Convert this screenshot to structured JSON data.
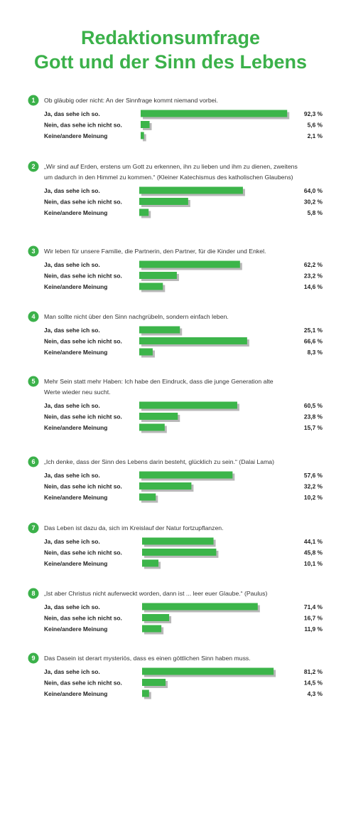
{
  "title": {
    "line1": "Redaktionsumfrage",
    "line2": "Gott und der Sinn des Lebens"
  },
  "colors": {
    "accent": "#3bb14a",
    "bar": "#3cb54a",
    "shadow": "#b8b8b8"
  },
  "chart_data": {
    "type": "bar",
    "orientation": "horizontal",
    "value_unit": "%",
    "categories": [
      "Ja, das sehe ich so.",
      "Nein, das sehe ich nicht so.",
      "Keine/andere Meinung"
    ],
    "questions": [
      {
        "number": "1",
        "text": [
          "Ob gläubig oder nicht: An der Sinnfrage kommt niemand vorbei."
        ],
        "values": [
          92.3,
          5.6,
          2.1
        ],
        "labels": [
          "92,3 %",
          "5,6 %",
          "2,1 %"
        ]
      },
      {
        "number": "2",
        "text": [
          "„Wir sind auf Erden, erstens um Gott zu erkennen, ihn zu lieben und ihm zu dienen, zweitens",
          "um dadurch in den Himmel zu kommen.“ (Kleiner Katechismus des katholischen Glaubens)"
        ],
        "values": [
          64.0,
          30.2,
          5.8
        ],
        "labels": [
          "64,0 %",
          "30,2 %",
          "5,8 %"
        ]
      },
      {
        "number": "3",
        "text": [
          "Wir leben für unsere Familie, die Partnerin, den Partner, für die Kinder und Enkel."
        ],
        "values": [
          62.2,
          23.2,
          14.6
        ],
        "labels": [
          "62,2 %",
          "23,2 %",
          "14,6 %"
        ]
      },
      {
        "number": "4",
        "text": [
          "Man sollte nicht über den Sinn nachgrübeln, sondern einfach leben."
        ],
        "values": [
          25.1,
          66.6,
          8.3
        ],
        "labels": [
          "25,1 %",
          "66,6 %",
          "8,3 %"
        ]
      },
      {
        "number": "5",
        "text": [
          "Mehr Sein statt mehr Haben: Ich habe den Eindruck, dass die junge Generation alte",
          "Werte wieder neu sucht."
        ],
        "values": [
          60.5,
          23.8,
          15.7
        ],
        "labels": [
          "60,5 %",
          "23,8 %",
          "15,7 %"
        ]
      },
      {
        "number": "6",
        "text": [
          "„Ich denke, dass der Sinn des Lebens darin besteht, glücklich zu sein.“ (Dalai Lama)"
        ],
        "values": [
          57.6,
          32.2,
          10.2
        ],
        "labels": [
          "57,6 %",
          "32,2 %",
          "10,2 %"
        ]
      },
      {
        "number": "7",
        "text": [
          "Das Leben ist dazu da, sich im Kreislauf der Natur fortzupflanzen."
        ],
        "values": [
          44.1,
          45.8,
          10.1
        ],
        "labels": [
          "44,1 %",
          "45,8 %",
          "10,1 %"
        ]
      },
      {
        "number": "8",
        "text": [
          "„Ist aber Christus nicht auferweckt worden, dann ist ... leer euer Glaube.“ (Paulus)"
        ],
        "values": [
          71.4,
          16.7,
          11.9
        ],
        "labels": [
          "71,4 %",
          "16,7 %",
          "11,9 %"
        ]
      },
      {
        "number": "9",
        "text": [
          "Das Dasein ist derart mysteriös, dass es einen göttlichen Sinn haben muss."
        ],
        "values": [
          81.2,
          14.5,
          4.3
        ],
        "labels": [
          "81,2 %",
          "14,5 %",
          "4,3 %"
        ]
      }
    ]
  }
}
